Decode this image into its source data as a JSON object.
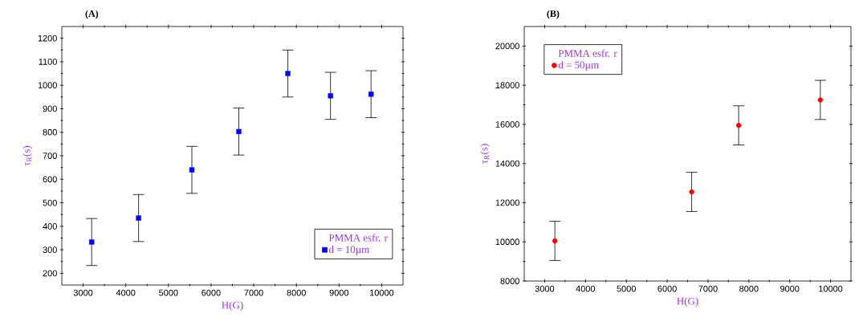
{
  "chart_data": [
    {
      "type": "scatter",
      "title": "(A)",
      "xlabel": "H(G)",
      "ylabel": "τ$_{R}$(s)",
      "legend_title": "PMMA esfr. r",
      "xlim": [
        2500,
        10500
      ],
      "xticks": [
        3000,
        4000,
        5000,
        6000,
        7000,
        8000,
        9000,
        10000
      ],
      "ylim": [
        150,
        1250
      ],
      "yticks": [
        200,
        300,
        400,
        500,
        600,
        700,
        800,
        900,
        1000,
        1100,
        1200
      ],
      "marker": "square",
      "legend": "bottom right",
      "grid": false,
      "series": [
        {
          "name": "d = 10µm",
          "color": "#0000ff",
          "x": [
            3200,
            4300,
            5550,
            6650,
            7800,
            8800,
            9750
          ],
          "values": [
            333,
            435,
            640,
            803,
            1050,
            955,
            962
          ],
          "errors": [
            100,
            100,
            100,
            100,
            100,
            100,
            100
          ]
        }
      ]
    },
    {
      "type": "scatter",
      "title": "(B)",
      "xlabel": "H(G)",
      "ylabel": "τ$_{R}$(s)",
      "legend_title": "PMMA esfr. r",
      "xlim": [
        2500,
        10500
      ],
      "xticks": [
        3000,
        4000,
        5000,
        6000,
        7000,
        8000,
        9000,
        10000
      ],
      "ylim": [
        8000,
        21000
      ],
      "yticks": [
        8000,
        10000,
        12000,
        14000,
        16000,
        18000,
        20000
      ],
      "marker": "circle",
      "legend": "top left",
      "grid": false,
      "series": [
        {
          "name": "d = 50µm",
          "color": "#ff0000",
          "x": [
            3250,
            6600,
            7750,
            9750
          ],
          "values": [
            10050,
            12550,
            15950,
            17250
          ],
          "errors": [
            1000,
            1000,
            1000,
            1000
          ]
        }
      ]
    }
  ]
}
